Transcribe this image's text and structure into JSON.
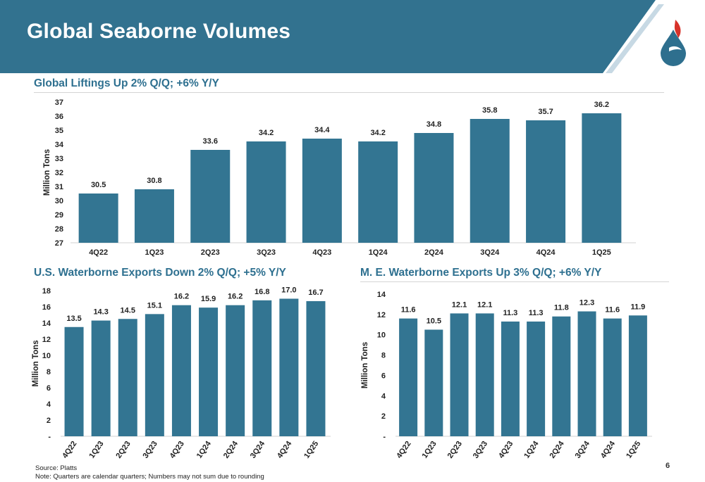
{
  "slide": {
    "title": "Global Seaborne Volumes",
    "page_number": "6",
    "source": "Source: Platts",
    "note": "Note: Quarters are calendar quarters; Numbers may not sum due to rounding"
  },
  "colors": {
    "header": "#32728f",
    "bar": "#337592",
    "subtitle": "#2e7090",
    "logo_blue": "#2e6f8e",
    "logo_red": "#d7322a"
  },
  "logo": {
    "icon": "drop-flame-logo-icon"
  },
  "chart_data": [
    {
      "id": "global-liftings",
      "type": "bar",
      "title": "Global Liftings Up 2% Q/Q; +6% Y/Y",
      "ylabel": "Million Tons",
      "xlabel": "",
      "ylim": [
        27,
        37
      ],
      "yticks": [
        "27",
        "28",
        "29",
        "30",
        "31",
        "32",
        "33",
        "34",
        "35",
        "36",
        "37"
      ],
      "grid": false,
      "categories": [
        "4Q22",
        "1Q23",
        "2Q23",
        "3Q23",
        "4Q23",
        "1Q24",
        "2Q24",
        "3Q24",
        "4Q24",
        "1Q25"
      ],
      "values": [
        30.5,
        30.8,
        33.6,
        34.2,
        34.4,
        34.2,
        34.8,
        35.8,
        35.7,
        36.2
      ],
      "labels": [
        "30.5",
        "30.8",
        "33.6",
        "34.2",
        "34.4",
        "34.2",
        "34.8",
        "35.8",
        "35.7",
        "36.2"
      ]
    },
    {
      "id": "us-exports",
      "type": "bar",
      "title": "U.S. Waterborne Exports Down 2% Q/Q; +5% Y/Y",
      "ylabel": "Million Tons",
      "xlabel": "",
      "ylim": [
        0,
        18
      ],
      "yticks": [
        "-",
        "2",
        "4",
        "6",
        "8",
        "10",
        "12",
        "14",
        "16",
        "18"
      ],
      "grid": false,
      "categories": [
        "4Q22",
        "1Q23",
        "2Q23",
        "3Q23",
        "4Q23",
        "1Q24",
        "2Q24",
        "3Q24",
        "4Q24",
        "1Q25"
      ],
      "values": [
        13.5,
        14.3,
        14.5,
        15.1,
        16.2,
        15.9,
        16.2,
        16.8,
        17.0,
        16.7
      ],
      "labels": [
        "13.5",
        "14.3",
        "14.5",
        "15.1",
        "16.2",
        "15.9",
        "16.2",
        "16.8",
        "17.0",
        "16.7"
      ]
    },
    {
      "id": "me-exports",
      "type": "bar",
      "title": "M. E. Waterborne Exports Up 3% Q/Q; +6% Y/Y",
      "ylabel": "Million Tons",
      "xlabel": "",
      "ylim": [
        0,
        14
      ],
      "yticks": [
        "-",
        "2",
        "4",
        "6",
        "8",
        "10",
        "12",
        "14"
      ],
      "grid": false,
      "categories": [
        "4Q22",
        "1Q23",
        "2Q23",
        "3Q23",
        "4Q23",
        "1Q24",
        "2Q24",
        "3Q24",
        "4Q24",
        "1Q25"
      ],
      "values": [
        11.6,
        10.5,
        12.1,
        12.1,
        11.3,
        11.3,
        11.8,
        12.3,
        11.6,
        11.9
      ],
      "labels": [
        "11.6",
        "10.5",
        "12.1",
        "12.1",
        "11.3",
        "11.3",
        "11.8",
        "12.3",
        "11.6",
        "11.9"
      ]
    }
  ]
}
